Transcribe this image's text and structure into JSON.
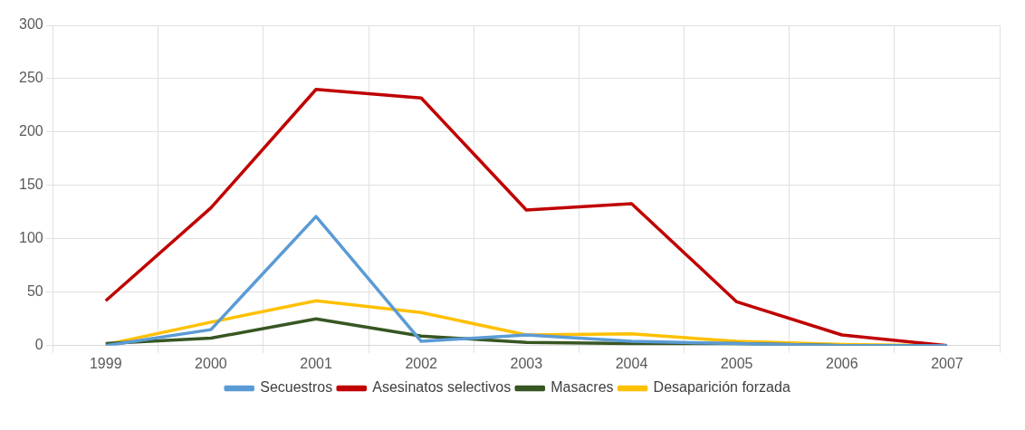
{
  "chart_data": {
    "type": "line",
    "categories": [
      "1999",
      "2000",
      "2001",
      "2002",
      "2003",
      "2004",
      "2005",
      "2006",
      "2007"
    ],
    "series": [
      {
        "name": "Secuestros",
        "color": "#5b9bd5",
        "values": [
          0,
          15,
          121,
          4,
          10,
          4,
          2,
          0,
          0
        ]
      },
      {
        "name": "Asesinatos selectivos",
        "color": "#c00000",
        "values": [
          42,
          129,
          240,
          232,
          127,
          133,
          41,
          10,
          0
        ]
      },
      {
        "name": "Masacres",
        "color": "#375623",
        "values": [
          2,
          7,
          25,
          9,
          3,
          2,
          2,
          0,
          0
        ]
      },
      {
        "name": "Desaparición forzada",
        "color": "#ffc000",
        "values": [
          1,
          22,
          42,
          31,
          10,
          11,
          4,
          1,
          0
        ]
      }
    ],
    "ylim": [
      0,
      300
    ],
    "yticks": [
      0,
      50,
      100,
      150,
      200,
      250,
      300
    ],
    "grid": true,
    "legend": "bottom",
    "marker": "none",
    "line_style": "solid"
  }
}
